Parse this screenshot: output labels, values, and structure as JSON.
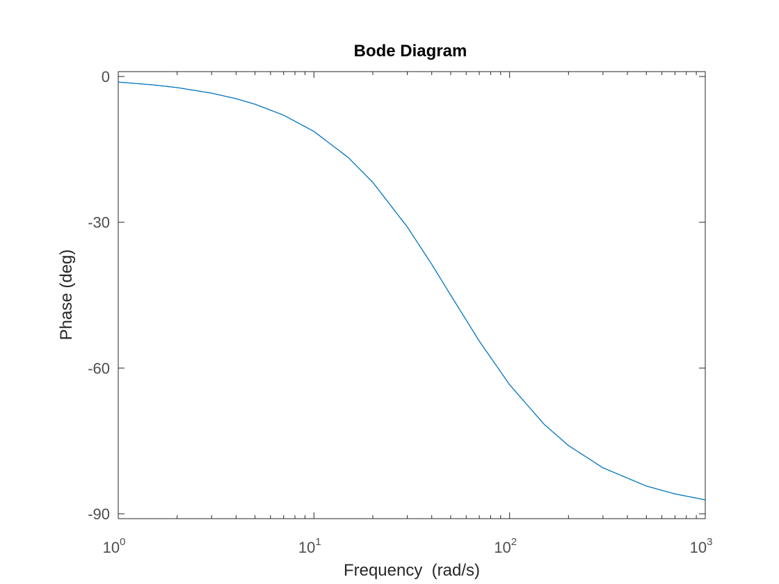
{
  "chart_data": {
    "type": "line",
    "title": "Bode Diagram",
    "xlabel": "Frequency  (rad/s)",
    "ylabel": "Phase (deg)",
    "xscale": "log",
    "xlim": [
      1,
      1000
    ],
    "ylim": [
      -91,
      1
    ],
    "grid": false,
    "legend": "none",
    "x_ticks": [
      {
        "base": "10",
        "exp": "0",
        "value": 1
      },
      {
        "base": "10",
        "exp": "1",
        "value": 10
      },
      {
        "base": "10",
        "exp": "2",
        "value": 100
      },
      {
        "base": "10",
        "exp": "3",
        "value": 1000
      }
    ],
    "y_ticks": [
      {
        "label": "0",
        "value": 0
      },
      {
        "label": "-30",
        "value": -30
      },
      {
        "label": "-60",
        "value": -60
      },
      {
        "label": "-90",
        "value": -90
      }
    ],
    "series": [
      {
        "color": "#0072bd",
        "x": [
          1,
          1.5,
          2,
          3,
          4,
          5,
          7,
          10,
          15,
          20,
          30,
          40,
          50,
          70,
          100,
          150,
          200,
          300,
          500,
          700,
          1000
        ],
        "y": [
          -1.15,
          -1.72,
          -2.29,
          -3.43,
          -4.57,
          -5.71,
          -7.97,
          -11.31,
          -16.7,
          -21.8,
          -30.96,
          -38.66,
          -45.0,
          -54.46,
          -63.43,
          -71.57,
          -75.96,
          -80.54,
          -84.29,
          -85.91,
          -87.14
        ]
      }
    ]
  },
  "colors": {
    "axes": "#262626",
    "tick_label": "#4d4d4d",
    "line": "#0072bd"
  }
}
